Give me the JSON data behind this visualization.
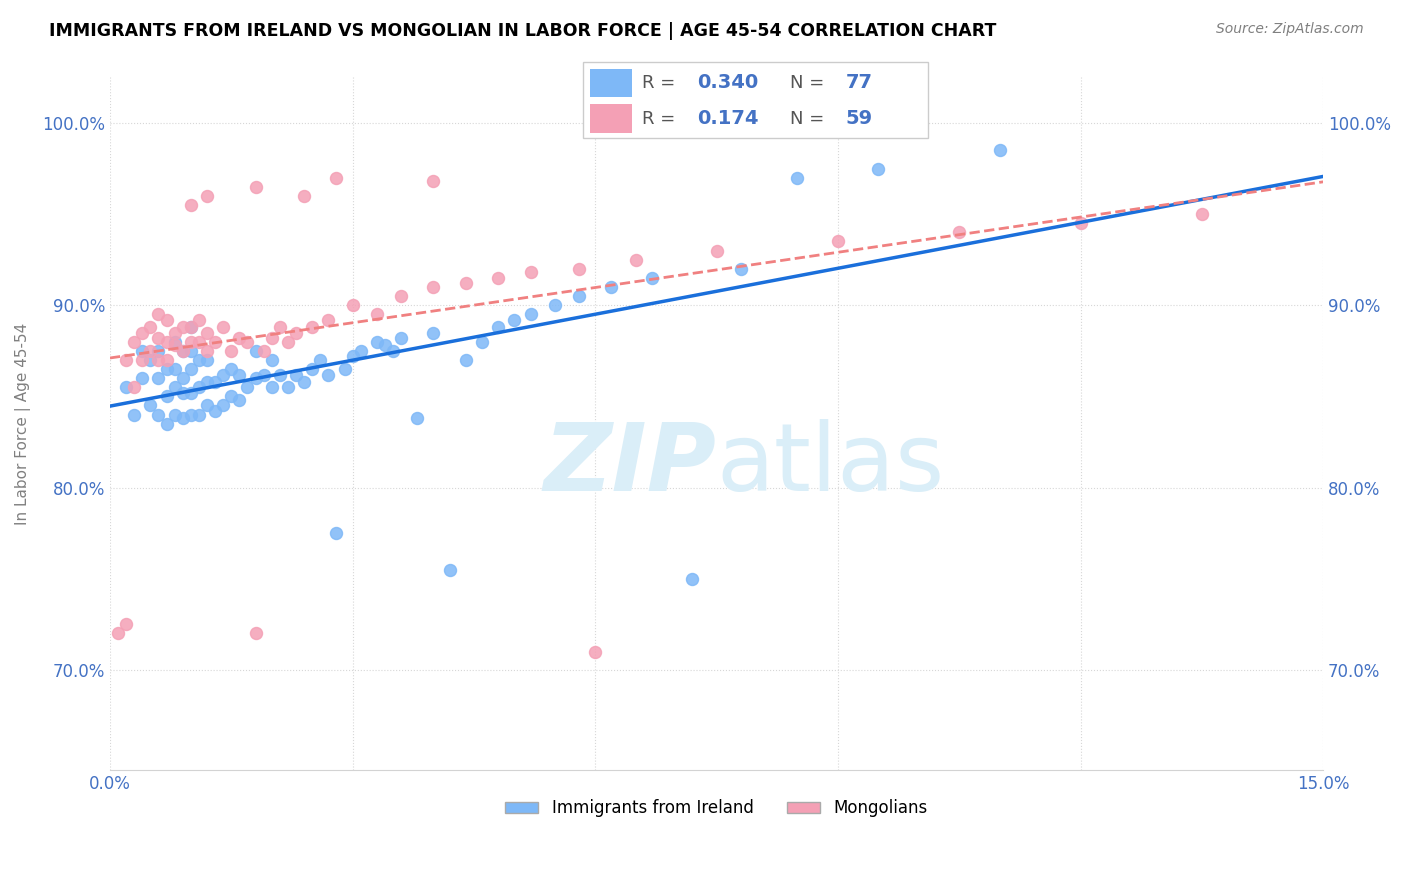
{
  "title": "IMMIGRANTS FROM IRELAND VS MONGOLIAN IN LABOR FORCE | AGE 45-54 CORRELATION CHART",
  "source": "Source: ZipAtlas.com",
  "ylabel": "In Labor Force | Age 45-54",
  "xlim": [
    0.0,
    0.15
  ],
  "ylim": [
    0.645,
    1.025
  ],
  "yticks": [
    0.7,
    0.8,
    0.9,
    1.0
  ],
  "yticklabels": [
    "70.0%",
    "80.0%",
    "90.0%",
    "100.0%"
  ],
  "legend_r_ireland": "0.340",
  "legend_n_ireland": "77",
  "legend_r_mongolian": "0.174",
  "legend_n_mongolian": "59",
  "ireland_color": "#7eb8f7",
  "mongolian_color": "#f4a0b5",
  "ireland_line_color": "#1a6fdb",
  "mongolian_line_color": "#f08080",
  "watermark_color": "#daeef8",
  "tick_color": "#4472c4",
  "ireland_x": [
    0.002,
    0.003,
    0.004,
    0.004,
    0.005,
    0.005,
    0.006,
    0.006,
    0.006,
    0.007,
    0.007,
    0.007,
    0.008,
    0.008,
    0.008,
    0.008,
    0.009,
    0.009,
    0.009,
    0.009,
    0.01,
    0.01,
    0.01,
    0.01,
    0.01,
    0.011,
    0.011,
    0.011,
    0.012,
    0.012,
    0.012,
    0.013,
    0.013,
    0.014,
    0.014,
    0.015,
    0.015,
    0.016,
    0.016,
    0.017,
    0.018,
    0.018,
    0.019,
    0.02,
    0.02,
    0.021,
    0.022,
    0.023,
    0.024,
    0.025,
    0.026,
    0.027,
    0.028,
    0.029,
    0.03,
    0.031,
    0.033,
    0.034,
    0.035,
    0.036,
    0.038,
    0.04,
    0.042,
    0.044,
    0.046,
    0.048,
    0.05,
    0.052,
    0.055,
    0.058,
    0.062,
    0.067,
    0.072,
    0.078,
    0.085,
    0.095,
    0.11
  ],
  "ireland_y": [
    0.855,
    0.84,
    0.86,
    0.875,
    0.845,
    0.87,
    0.84,
    0.86,
    0.875,
    0.835,
    0.85,
    0.865,
    0.84,
    0.855,
    0.865,
    0.88,
    0.838,
    0.852,
    0.86,
    0.875,
    0.84,
    0.852,
    0.865,
    0.875,
    0.888,
    0.84,
    0.855,
    0.87,
    0.845,
    0.858,
    0.87,
    0.842,
    0.858,
    0.845,
    0.862,
    0.85,
    0.865,
    0.848,
    0.862,
    0.855,
    0.86,
    0.875,
    0.862,
    0.855,
    0.87,
    0.862,
    0.855,
    0.862,
    0.858,
    0.865,
    0.87,
    0.862,
    0.775,
    0.865,
    0.872,
    0.875,
    0.88,
    0.878,
    0.875,
    0.882,
    0.838,
    0.885,
    0.755,
    0.87,
    0.88,
    0.888,
    0.892,
    0.895,
    0.9,
    0.905,
    0.91,
    0.915,
    0.75,
    0.92,
    0.97,
    0.975,
    0.985
  ],
  "mongolian_x": [
    0.001,
    0.002,
    0.002,
    0.003,
    0.003,
    0.004,
    0.004,
    0.005,
    0.005,
    0.006,
    0.006,
    0.006,
    0.007,
    0.007,
    0.007,
    0.008,
    0.008,
    0.009,
    0.009,
    0.01,
    0.01,
    0.011,
    0.011,
    0.012,
    0.012,
    0.013,
    0.014,
    0.015,
    0.016,
    0.017,
    0.018,
    0.019,
    0.02,
    0.021,
    0.022,
    0.023,
    0.025,
    0.027,
    0.03,
    0.033,
    0.036,
    0.04,
    0.044,
    0.048,
    0.052,
    0.058,
    0.065,
    0.075,
    0.09,
    0.105,
    0.12,
    0.135,
    0.01,
    0.012,
    0.018,
    0.024,
    0.028,
    0.04,
    0.06
  ],
  "mongolian_y": [
    0.72,
    0.725,
    0.87,
    0.855,
    0.88,
    0.87,
    0.885,
    0.875,
    0.888,
    0.87,
    0.882,
    0.895,
    0.87,
    0.88,
    0.892,
    0.878,
    0.885,
    0.875,
    0.888,
    0.88,
    0.888,
    0.88,
    0.892,
    0.875,
    0.885,
    0.88,
    0.888,
    0.875,
    0.882,
    0.88,
    0.72,
    0.875,
    0.882,
    0.888,
    0.88,
    0.885,
    0.888,
    0.892,
    0.9,
    0.895,
    0.905,
    0.91,
    0.912,
    0.915,
    0.918,
    0.92,
    0.925,
    0.93,
    0.935,
    0.94,
    0.945,
    0.95,
    0.955,
    0.96,
    0.965,
    0.96,
    0.97,
    0.968,
    0.71
  ]
}
